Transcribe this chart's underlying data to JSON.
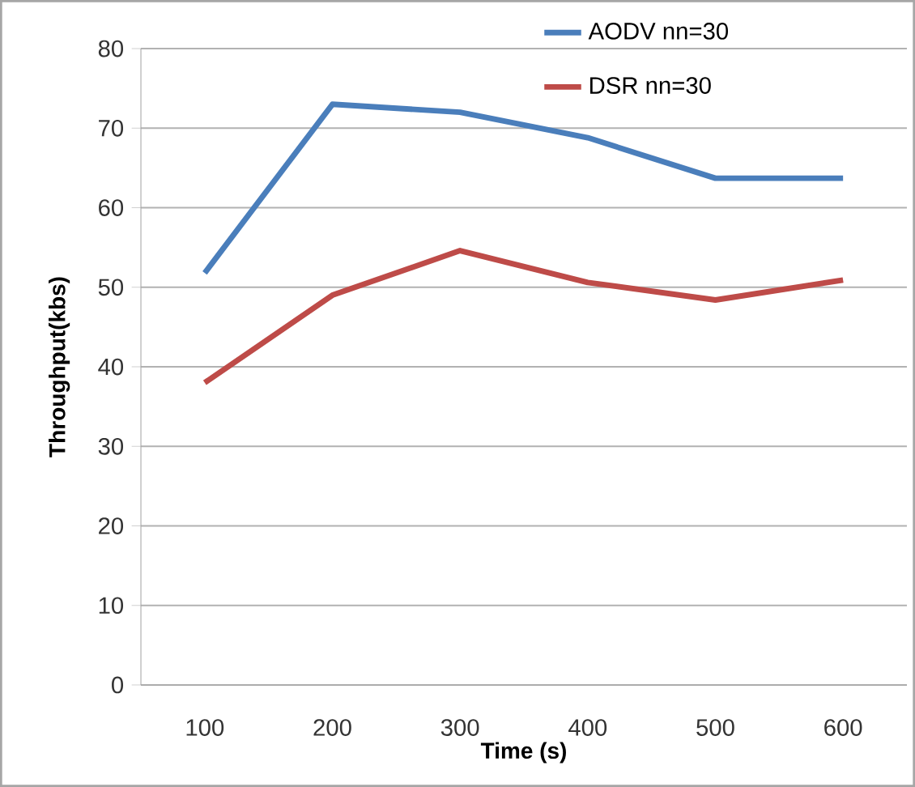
{
  "chart_data": {
    "type": "line",
    "xlabel": "Time (s)",
    "ylabel": "Throughput(kbs)",
    "categories": [
      "100",
      "200",
      "300",
      "400",
      "500",
      "600"
    ],
    "series": [
      {
        "name": "AODV nn=30",
        "color": "#4a7ebb",
        "values": [
          51.8,
          73,
          72,
          68.8,
          63.7,
          63.7
        ]
      },
      {
        "name": "DSR  nn=30",
        "color": "#be4b48",
        "values": [
          38,
          49,
          54.6,
          50.6,
          48.4,
          50.9
        ]
      }
    ],
    "ylim": [
      0,
      80
    ],
    "yticks": [
      0,
      10,
      20,
      30,
      40,
      50,
      60,
      70,
      80
    ],
    "grid": "y",
    "legend": "top right",
    "marker": "none",
    "line_style": "solid"
  }
}
